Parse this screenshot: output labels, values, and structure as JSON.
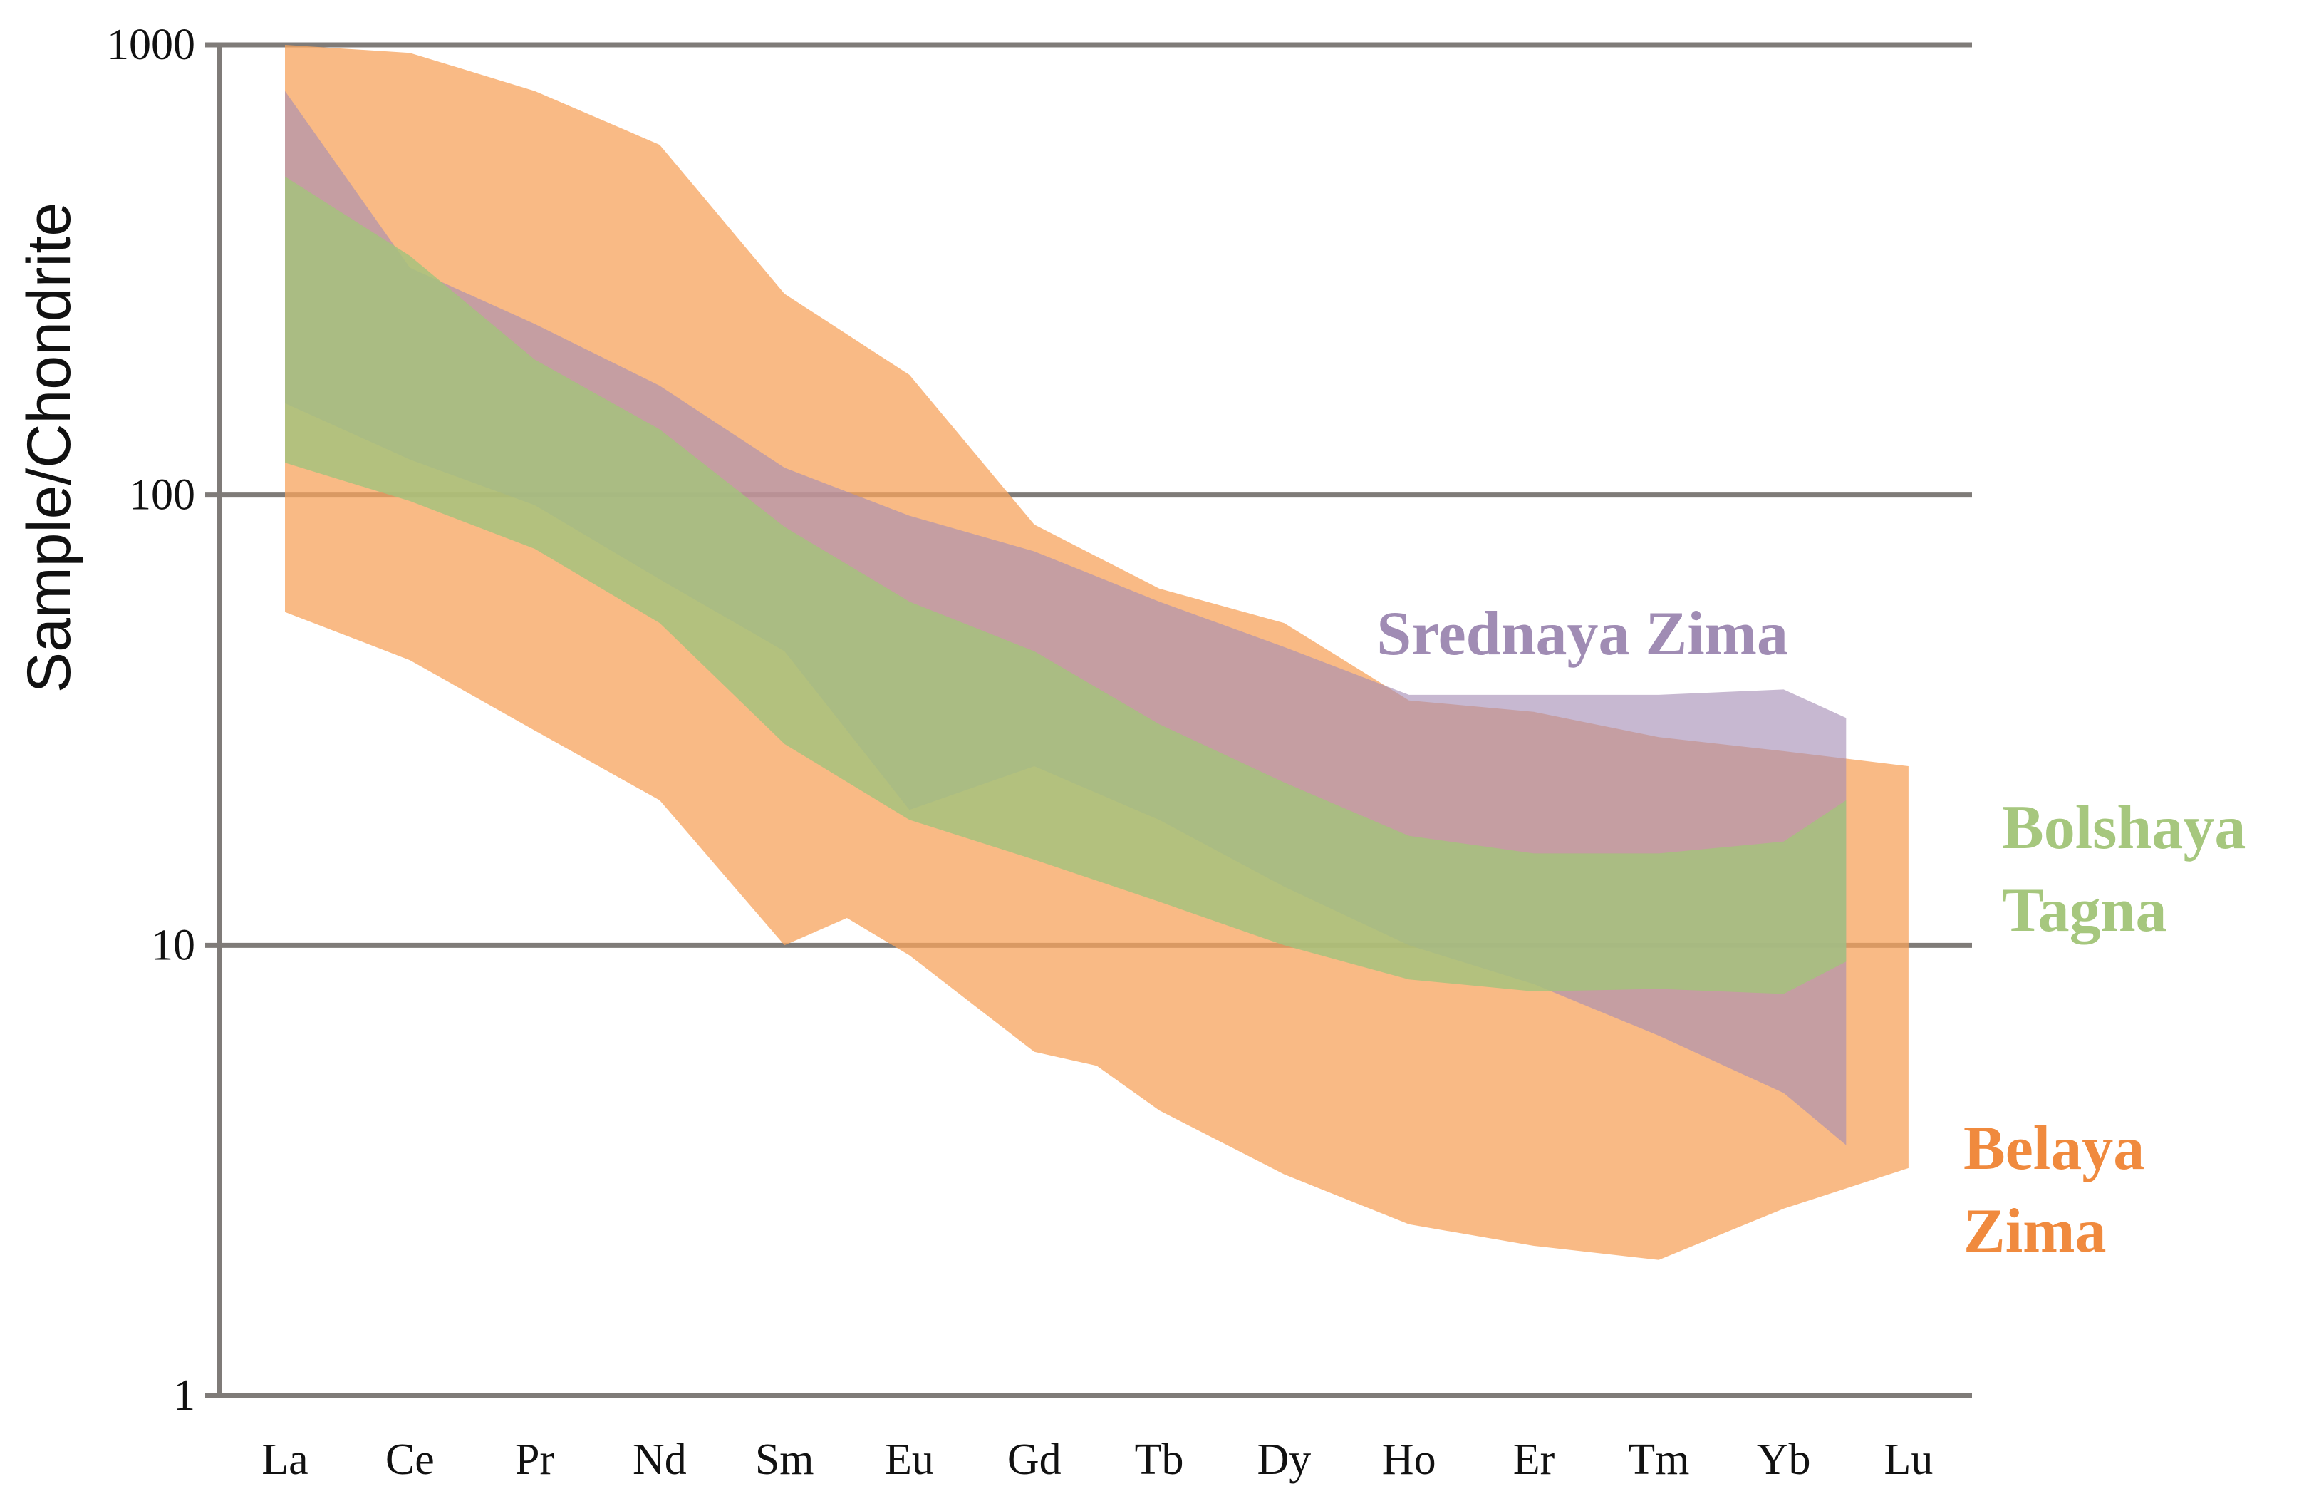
{
  "chart_data": {
    "type": "area",
    "title": "",
    "xlabel": "",
    "ylabel": "Sample/Chondrite",
    "yscale": "log",
    "ylim": [
      1,
      1000
    ],
    "yticks": [
      1,
      10,
      100,
      1000
    ],
    "ytick_labels": [
      "1",
      "10",
      "100",
      "1000"
    ],
    "grid": "horizontal at decades",
    "categories": [
      "La",
      "Ce",
      "Pr",
      "Nd",
      "Sm",
      "Eu",
      "Gd",
      "Tb",
      "Dy",
      "Ho",
      "Er",
      "Tm",
      "Yb",
      "Lu"
    ],
    "series": [
      {
        "name": "Belaya Zima",
        "label_lines": [
          "Belaya",
          "Zima"
        ],
        "color": "#f7a35c",
        "label_color": "#f08a3e",
        "opacity": 0.75,
        "upper": [
          [
            "La",
            1000
          ],
          [
            "Ce",
            960
          ],
          [
            "Pr",
            790
          ],
          [
            "Nd",
            600
          ],
          [
            "Sm",
            280
          ],
          [
            "Eu",
            185
          ],
          [
            "Gd",
            86
          ],
          [
            "Tb",
            62
          ],
          [
            "Dy",
            52
          ],
          [
            "Ho",
            35
          ],
          [
            "Er",
            33
          ],
          [
            "Tm",
            29
          ],
          [
            "Yb",
            27
          ],
          [
            "Lu",
            25
          ]
        ],
        "lower": [
          [
            "La",
            55
          ],
          [
            "Ce",
            43
          ],
          [
            "Pr",
            30
          ],
          [
            "Nd",
            21
          ],
          [
            "Sm",
            10
          ],
          [
            "Sm-Eu",
            11.5
          ],
          [
            "Eu",
            9.5
          ],
          [
            "Gd",
            5.8
          ],
          [
            "Gd-Tb",
            5.4
          ],
          [
            "Tb",
            4.3
          ],
          [
            "Dy",
            3.1
          ],
          [
            "Ho",
            2.4
          ],
          [
            "Er",
            2.15
          ],
          [
            "Tm",
            2.0
          ],
          [
            "Yb",
            2.6
          ],
          [
            "Lu",
            3.2
          ]
        ]
      },
      {
        "name": "Srednaya Zima",
        "label_lines": [
          "Srednaya Zima"
        ],
        "color": "#a58db5",
        "label_color": "#a08cb4",
        "opacity": 0.62,
        "upper": [
          [
            "La",
            790
          ],
          [
            "Ce",
            320
          ],
          [
            "Pr",
            240
          ],
          [
            "Nd",
            175
          ],
          [
            "Sm",
            115
          ],
          [
            "Eu",
            90
          ],
          [
            "Gd",
            75
          ],
          [
            "Tb",
            58
          ],
          [
            "Dy",
            46
          ],
          [
            "Ho",
            36
          ],
          [
            "Er",
            36
          ],
          [
            "Tm",
            36
          ],
          [
            "Yb",
            37
          ],
          [
            "Yb-Lu",
            32
          ]
        ],
        "lower": [
          [
            "La",
            160
          ],
          [
            "Ce",
            120
          ],
          [
            "Pr",
            95
          ],
          [
            "Nd",
            65
          ],
          [
            "Sm",
            45
          ],
          [
            "Eu",
            20
          ],
          [
            "Gd",
            25
          ],
          [
            "Tb",
            19
          ],
          [
            "Dy",
            13.5
          ],
          [
            "Ho",
            10
          ],
          [
            "Er",
            8.2
          ],
          [
            "Tm",
            6.3
          ],
          [
            "Yb",
            4.7
          ],
          [
            "Yb-Lu",
            3.6
          ]
        ]
      },
      {
        "name": "Bolshaya Tagna",
        "label_lines": [
          "Bolshaya",
          "Tagna"
        ],
        "color": "#a3c27c",
        "label_color": "#a6c77e",
        "opacity": 0.82,
        "upper": [
          [
            "La",
            510
          ],
          [
            "Ce",
            340
          ],
          [
            "Pr",
            200
          ],
          [
            "Nd",
            140
          ],
          [
            "Sm",
            85
          ],
          [
            "Eu",
            58
          ],
          [
            "Gd",
            45
          ],
          [
            "Tb",
            31
          ],
          [
            "Dy",
            23
          ],
          [
            "Ho",
            17.5
          ],
          [
            "Er",
            16
          ],
          [
            "Tm",
            16
          ],
          [
            "Yb",
            17
          ],
          [
            "Yb-Lu",
            21
          ]
        ],
        "lower": [
          [
            "La",
            118
          ],
          [
            "Ce",
            97
          ],
          [
            "Pr",
            76
          ],
          [
            "Nd",
            52
          ],
          [
            "Sm",
            28
          ],
          [
            "Eu",
            19
          ],
          [
            "Gd",
            15.5
          ],
          [
            "Tb",
            12.5
          ],
          [
            "Dy",
            10
          ],
          [
            "Ho",
            8.4
          ],
          [
            "Er",
            7.9
          ],
          [
            "Tm",
            8.0
          ],
          [
            "Yb",
            7.8
          ],
          [
            "Yb-Lu",
            9.2
          ]
        ]
      }
    ]
  }
}
